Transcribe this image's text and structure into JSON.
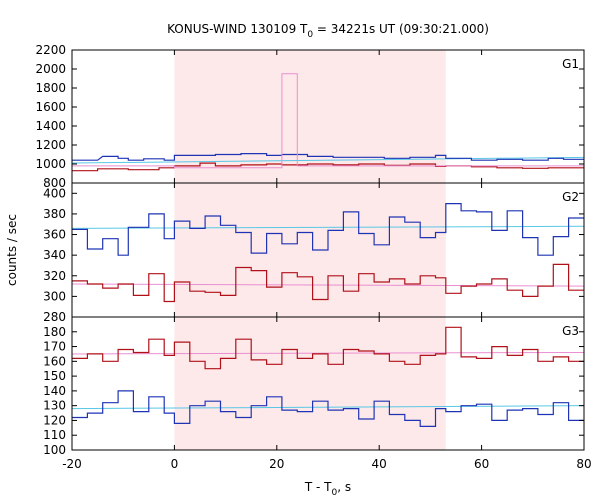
{
  "chart_data": {
    "type": "line",
    "title": {
      "prefix": "KONUS-WIND 130109 T",
      "sub": "0",
      "suffix": " = 34221s UT (09:30:21.000)"
    },
    "xlabel": {
      "prefix": "T - T",
      "sub": "0",
      "suffix": ", s"
    },
    "ylabel": "counts / sec",
    "xlim": [
      -20,
      80
    ],
    "xticks": [
      -20,
      0,
      20,
      40,
      60,
      80
    ],
    "highlight_interval": [
      0,
      53
    ],
    "colors": {
      "highlight": "#fde8ea",
      "blue": "#1f34b5",
      "red": "#b01018",
      "cyan": "#58c8e6",
      "pink": "#ea8fd2"
    },
    "panels": [
      {
        "label": "G1",
        "ylim": [
          800,
          2200
        ],
        "yticks": [
          800,
          1000,
          1200,
          1400,
          1600,
          1800,
          2000,
          2200
        ],
        "series": [
          {
            "color": "blue",
            "values": [
              1045,
              1045,
              1045,
              1085,
              1060,
              1030,
              1060,
              1045,
              1045,
              1080,
              1080,
              1080,
              1080,
              1100,
              1100,
              1100,
              1100,
              1080,
              1080,
              1080,
              1070,
              1070,
              1070,
              1060,
              1055,
              1055,
              1050,
              1050,
              1050,
              1050,
              1050,
              1050,
              1050,
              1050,
              1040,
              1040,
              1030,
              1030,
              1020,
              1050,
              1050,
              1050,
              1060,
              1060,
              1070,
              1065,
              1060,
              1040,
              1080,
              1055
            ],
            "step_starts": [
              -20,
              -17,
              -14,
              -13,
              -10,
              -7,
              -5,
              -3,
              0,
              3,
              6,
              9,
              12,
              15,
              18,
              21,
              24,
              27,
              30,
              33,
              36,
              39,
              42,
              45,
              48,
              51,
              54,
              57,
              60,
              63,
              66,
              69,
              72,
              75,
              78,
              80,
              80,
              80,
              80,
              80,
              80,
              80,
              80,
              80,
              80,
              80,
              80,
              80,
              80,
              80
            ],
            "steps": [
              [
                -20,
                1040
              ],
              [
                -15,
                1040
              ],
              [
                -14,
                1080
              ],
              [
                -11,
                1080
              ],
              [
                -11,
                1060
              ],
              [
                -9,
                1060
              ],
              [
                -9,
                1040
              ],
              [
                -6,
                1040
              ],
              [
                -6,
                1055
              ],
              [
                -2,
                1055
              ],
              [
                -2,
                1035
              ],
              [
                0,
                1035
              ],
              [
                0,
                1090
              ],
              [
                5,
                1090
              ],
              [
                5,
                1090
              ],
              [
                8,
                1090
              ],
              [
                8,
                1100
              ],
              [
                13,
                1100
              ],
              [
                13,
                1110
              ],
              [
                18,
                1110
              ],
              [
                18,
                1100
              ],
              [
                21,
                1100
              ],
              [
                21,
                1110
              ],
              [
                26,
                1110
              ],
              [
                26,
                1080
              ],
              [
                31,
                1080
              ],
              [
                31,
                1070
              ],
              [
                36,
                1070
              ],
              [
                36,
                1070
              ],
              [
                41,
                1070
              ],
              [
                41,
                1060
              ],
              [
                46,
                1060
              ],
              [
                46,
                1070
              ],
              [
                51,
                1070
              ],
              [
                51,
                1090
              ],
              [
                53,
                1090
              ],
              [
                53,
                1050
              ],
              [
                58,
                1050
              ],
              [
                58,
                1030
              ],
              [
                63,
                1030
              ],
              [
                63,
                1050
              ],
              [
                68,
                1050
              ],
              [
                68,
                1040
              ],
              [
                73,
                1040
              ],
              [
                73,
                1060
              ],
              [
                76,
                1060
              ],
              [
                76,
                1050
              ],
              [
                80,
                1050
              ]
            ],
            "note": ""
          }
        ]
      }
    ]
  }
}
